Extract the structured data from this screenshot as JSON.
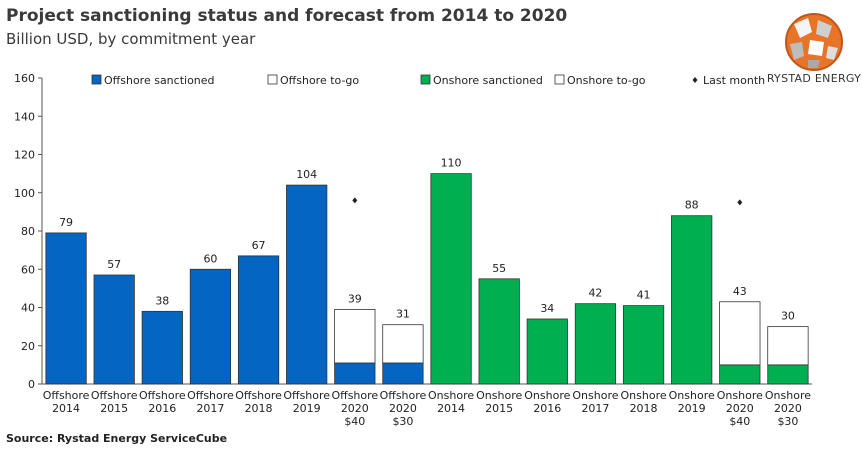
{
  "header": {
    "title": "Project sanctioning status and forecast from 2014 to 2020",
    "subtitle": "Billion USD, by commitment year"
  },
  "logo": {
    "name": "rystad-logo-icon",
    "text": "RYSTAD ENERGY"
  },
  "source": "Source: Rystad Energy ServiceCube",
  "colors": {
    "offshore": "#0565c2",
    "onshore": "#00b050",
    "togo": "#ffffff",
    "edge": "#333333"
  },
  "chart_data": {
    "type": "bar",
    "ylim": [
      0,
      160
    ],
    "yticks": [
      0,
      20,
      40,
      60,
      80,
      100,
      120,
      140,
      160
    ],
    "grid": false,
    "legend_position": "top",
    "legend": [
      {
        "label": "Offshore sanctioned",
        "kind": "offshore"
      },
      {
        "label": "Offshore to-go",
        "kind": "togo"
      },
      {
        "label": "Onshore sanctioned",
        "kind": "onshore"
      },
      {
        "label": "Onshore to-go",
        "kind": "togo"
      },
      {
        "label": "Last month",
        "kind": "marker"
      }
    ],
    "categories": [
      [
        "Offshore",
        "2014"
      ],
      [
        "Offshore",
        "2015"
      ],
      [
        "Offshore",
        "2016"
      ],
      [
        "Offshore",
        "2017"
      ],
      [
        "Offshore",
        "2018"
      ],
      [
        "Offshore",
        "2019"
      ],
      [
        "Offshore",
        "2020",
        "$40"
      ],
      [
        "Offshore",
        "2020",
        "$30"
      ],
      [
        "Onshore",
        "2014"
      ],
      [
        "Onshore",
        "2015"
      ],
      [
        "Onshore",
        "2016"
      ],
      [
        "Onshore",
        "2017"
      ],
      [
        "Onshore",
        "2018"
      ],
      [
        "Onshore",
        "2019"
      ],
      [
        "Onshore",
        "2020",
        "$40"
      ],
      [
        "Onshore",
        "2020",
        "$30"
      ]
    ],
    "series": [
      {
        "name": "Offshore sanctioned",
        "kind": "offshore",
        "values": [
          79,
          57,
          38,
          60,
          67,
          104,
          11,
          11,
          null,
          null,
          null,
          null,
          null,
          null,
          null,
          null
        ]
      },
      {
        "name": "Offshore to-go",
        "kind": "togo",
        "values": [
          null,
          null,
          null,
          null,
          null,
          null,
          28,
          20,
          null,
          null,
          null,
          null,
          null,
          null,
          null,
          null
        ]
      },
      {
        "name": "Onshore sanctioned",
        "kind": "onshore",
        "values": [
          null,
          null,
          null,
          null,
          null,
          null,
          null,
          null,
          110,
          55,
          34,
          42,
          41,
          88,
          10,
          10
        ]
      },
      {
        "name": "Onshore to-go",
        "kind": "togo",
        "values": [
          null,
          null,
          null,
          null,
          null,
          null,
          null,
          null,
          null,
          null,
          null,
          null,
          null,
          null,
          33,
          20
        ]
      }
    ],
    "totals": [
      79,
      57,
      38,
      60,
      67,
      104,
      39,
      31,
      110,
      55,
      34,
      42,
      41,
      88,
      43,
      30
    ],
    "last_month": [
      null,
      null,
      null,
      null,
      null,
      null,
      96,
      null,
      null,
      null,
      null,
      null,
      null,
      null,
      95,
      null
    ]
  }
}
